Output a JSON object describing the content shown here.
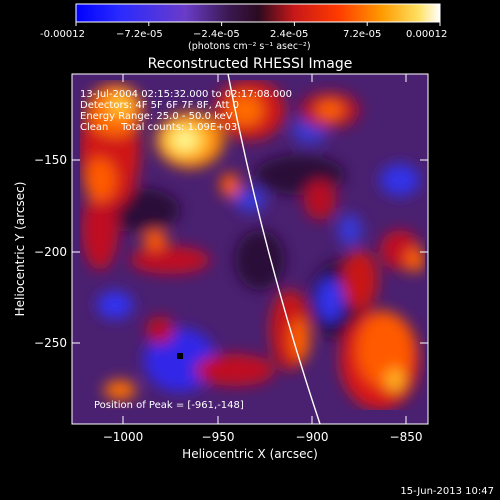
{
  "colorbar": {
    "ticks": [
      "-0.00012",
      "−7.2e-05",
      "−2.4e-05",
      "2.4e-05",
      "7.2e-05",
      "0.00012"
    ],
    "unit_label": "(photons cm⁻² s⁻¹ asec⁻²)"
  },
  "image": {
    "title": "Reconstructed RHESSI Image",
    "info_lines": [
      "13-Jul-2004 02:15:32.000 to 02:17:08.000",
      "Detectors: 4F 5F 6F 7F 8F, Att 0",
      "Energy Range: 25.0 - 50.0 keV",
      "Clean    Total counts: 1.09E+03"
    ],
    "peak_label": "Position of Peak = [-961,-148]",
    "xlabel": "Heliocentric X (arcsec)",
    "ylabel": "Heliocentric Y (arcsec)",
    "xticks": [
      "−1000",
      "−950",
      "−900",
      "−850"
    ],
    "yticks": [
      "−150",
      "−200",
      "−250"
    ],
    "footer_date": "15-Jun-2013 10:47"
  },
  "colors": {
    "background": "#000000",
    "axis": "#ffffff",
    "colormap": [
      "#0000ff",
      "#2020ff",
      "#6a3cc8",
      "#5a2a80",
      "#401a5a",
      "#7a1040",
      "#c81818",
      "#ff3a00",
      "#ff7a00",
      "#ffb000",
      "#ffe060",
      "#ffffff"
    ]
  }
}
